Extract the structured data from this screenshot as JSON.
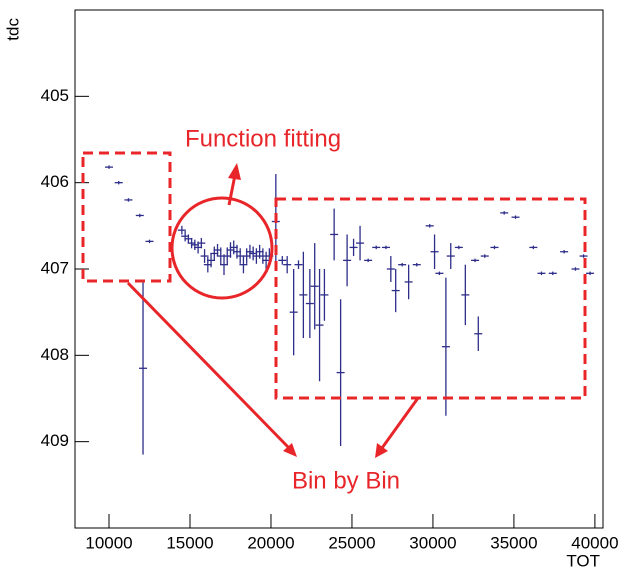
{
  "chart_data": {
    "type": "profile",
    "x_label": "TOT",
    "y_label": "tdc",
    "xlim": [
      7900,
      40500
    ],
    "ylim": [
      410,
      404
    ],
    "y_inverted": true,
    "xticks": [
      10000,
      15000,
      20000,
      25000,
      30000,
      35000,
      40000
    ],
    "yticks": [
      405,
      406,
      407,
      408,
      409
    ],
    "annotations": [
      "Function fitting",
      "Bin by Bin"
    ],
    "series": [
      {
        "color": "#2e2e8a",
        "x": [
          10000,
          10600,
          11200,
          11900,
          12100,
          12500,
          14500,
          14700,
          14900,
          15100,
          15300,
          15500,
          15700,
          15900,
          16100,
          16300,
          16500,
          16700,
          16900,
          17100,
          17300,
          17500,
          17700,
          17900,
          18100,
          18300,
          18500,
          18700,
          18900,
          19100,
          19300,
          19500,
          19700,
          19900,
          20300,
          20700,
          21000,
          21400,
          21700,
          22000,
          22400,
          22700,
          23000,
          23300,
          23900,
          24300,
          24700,
          25100,
          25500,
          26000,
          26500,
          27100,
          27400,
          27700,
          28100,
          28500,
          29000,
          29800,
          30100,
          30400,
          30800,
          31100,
          31600,
          32000,
          32600,
          32800,
          33200,
          33800,
          34400,
          35100,
          36200,
          36700,
          37400,
          38100,
          38800,
          39300,
          39700
        ],
        "values": [
          405.82,
          406.0,
          406.2,
          406.38,
          408.15,
          406.68,
          406.55,
          406.62,
          406.65,
          406.7,
          406.72,
          406.75,
          406.7,
          406.85,
          406.95,
          406.9,
          406.82,
          406.78,
          406.85,
          406.95,
          406.85,
          406.78,
          406.75,
          406.8,
          406.85,
          406.95,
          406.85,
          406.8,
          406.82,
          406.85,
          406.8,
          406.85,
          406.9,
          406.85,
          406.45,
          406.9,
          406.95,
          407.5,
          406.95,
          407.3,
          407.4,
          407.2,
          407.65,
          407.3,
          406.6,
          408.2,
          406.9,
          406.75,
          406.7,
          406.9,
          406.75,
          406.75,
          407.0,
          407.25,
          406.95,
          407.15,
          406.95,
          406.5,
          406.8,
          407.05,
          407.9,
          406.85,
          406.75,
          407.3,
          406.9,
          407.75,
          406.85,
          406.75,
          406.35,
          406.4,
          406.75,
          407.05,
          407.05,
          406.8,
          407.0,
          406.85,
          407.05
        ],
        "errors": [
          0.02,
          0.02,
          0.02,
          0.02,
          1.0,
          0.02,
          0.05,
          0.06,
          0.05,
          0.06,
          0.06,
          0.07,
          0.06,
          0.08,
          0.09,
          0.08,
          0.08,
          0.07,
          0.1,
          0.12,
          0.1,
          0.09,
          0.08,
          0.08,
          0.09,
          0.1,
          0.09,
          0.08,
          0.08,
          0.09,
          0.08,
          0.09,
          0.1,
          0.09,
          0.55,
          0.05,
          0.1,
          0.5,
          0.05,
          0.5,
          0.4,
          0.5,
          0.65,
          0.3,
          0.3,
          0.85,
          0.3,
          0.1,
          0.2,
          0.02,
          0.02,
          0.02,
          0.15,
          0.25,
          0.02,
          0.2,
          0.02,
          0.02,
          0.2,
          0.02,
          0.8,
          0.15,
          0.02,
          0.35,
          0.02,
          0.2,
          0.02,
          0.02,
          0.02,
          0.02,
          0.02,
          0.02,
          0.02,
          0.02,
          0.02,
          0.02,
          0.02
        ]
      }
    ]
  }
}
